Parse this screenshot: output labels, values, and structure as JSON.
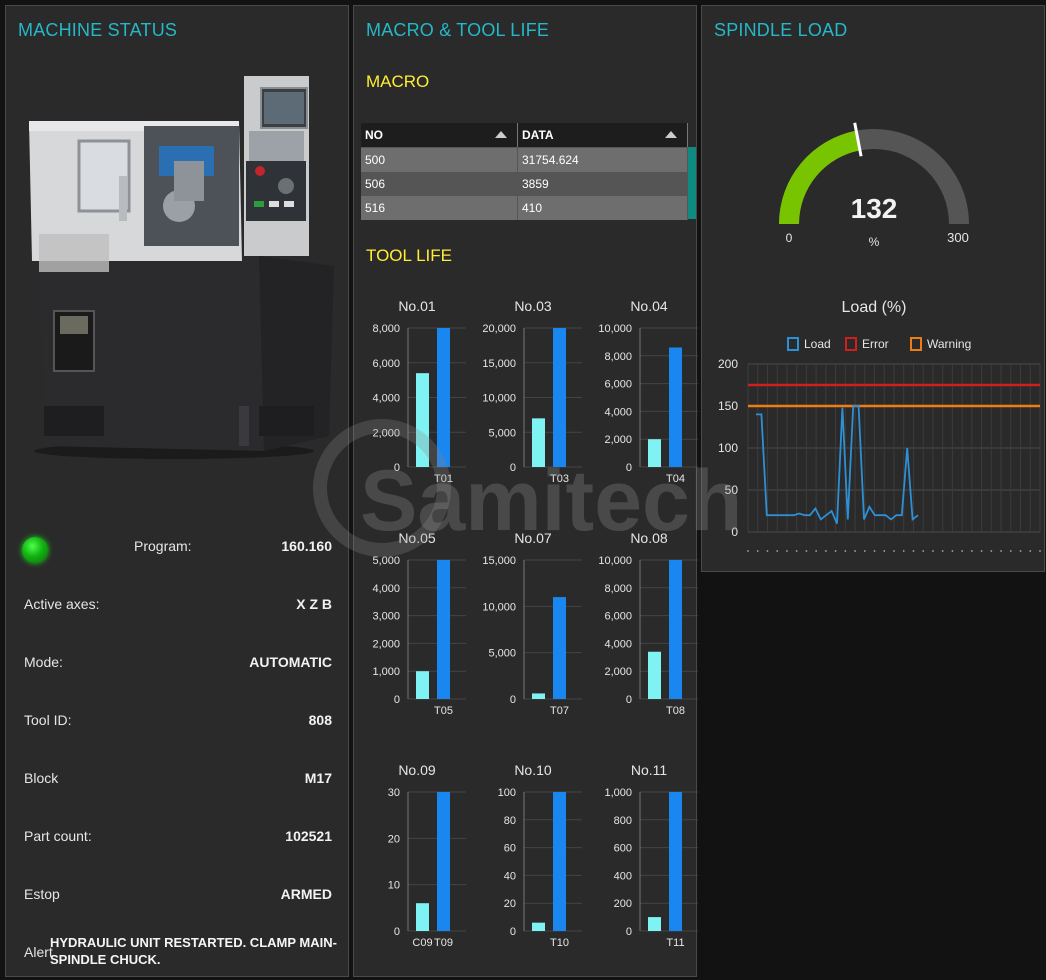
{
  "machine_status": {
    "title": "MACHINE STATUS",
    "rows": [
      {
        "label": "Program:",
        "value": "160.160"
      },
      {
        "label": "Active axes:",
        "value": "X Z B"
      },
      {
        "label": "Mode:",
        "value": "AUTOMATIC"
      },
      {
        "label": "Tool ID:",
        "value": "808"
      },
      {
        "label": "Block",
        "value": "M17"
      },
      {
        "label": "Part count:",
        "value": "102521"
      },
      {
        "label": "Estop",
        "value": "ARMED"
      }
    ],
    "alert_label": "Alert",
    "alert_text": "HYDRAULIC UNIT RESTARTED. CLAMP MAIN-SPINDLE CHUCK.",
    "status_color": "#1bd41b"
  },
  "macro_tool": {
    "title": "MACRO & TOOL LIFE",
    "macro_title": "MACRO",
    "columns": [
      "NO",
      "DATA"
    ],
    "rows": [
      [
        "500",
        "31754.624"
      ],
      [
        "506",
        "3859"
      ],
      [
        "516",
        "410"
      ]
    ],
    "tool_life_title": "TOOL LIFE"
  },
  "spindle": {
    "title": "SPINDLE LOAD",
    "gauge_value": "132",
    "gauge_unit": "%",
    "gauge_min": "0",
    "gauge_max": "300",
    "gauge_fill_color": "#79c400",
    "chart_title": "Load (%)",
    "legend": [
      {
        "name": "Load",
        "color": "#2d8fd6"
      },
      {
        "name": "Error",
        "color": "#d11f1f"
      },
      {
        "name": "Warning",
        "color": "#ef7d16"
      }
    ]
  },
  "watermark_text": "Samitech",
  "chart_data": [
    {
      "type": "bar",
      "title": "No.01",
      "categories": [
        "",
        "T01"
      ],
      "values": [
        5400,
        8000
      ],
      "yticks": [
        "0",
        "2,000",
        "4,000",
        "6,000",
        "8,000"
      ],
      "ylim": [
        0,
        8000
      ]
    },
    {
      "type": "bar",
      "title": "No.03",
      "categories": [
        "",
        "T03"
      ],
      "values": [
        7000,
        20000
      ],
      "yticks": [
        "0",
        "5,000",
        "10,000",
        "15,000",
        "20,000"
      ],
      "ylim": [
        0,
        20000
      ]
    },
    {
      "type": "bar",
      "title": "No.04",
      "categories": [
        "",
        "T04"
      ],
      "values": [
        2000,
        8600
      ],
      "yticks": [
        "0",
        "2,000",
        "4,000",
        "6,000",
        "8,000",
        "10,000"
      ],
      "ylim": [
        0,
        10000
      ]
    },
    {
      "type": "bar",
      "title": "No.05",
      "categories": [
        "",
        "T05"
      ],
      "values": [
        1000,
        5000
      ],
      "yticks": [
        "0",
        "1,000",
        "2,000",
        "3,000",
        "4,000",
        "5,000"
      ],
      "ylim": [
        0,
        5000
      ]
    },
    {
      "type": "bar",
      "title": "No.07",
      "categories": [
        "",
        "T07"
      ],
      "values": [
        600,
        11000
      ],
      "yticks": [
        "0",
        "5,000",
        "10,000",
        "15,000"
      ],
      "ylim": [
        0,
        15000
      ]
    },
    {
      "type": "bar",
      "title": "No.08",
      "categories": [
        "",
        "T08"
      ],
      "values": [
        3400,
        10000
      ],
      "yticks": [
        "0",
        "2,000",
        "4,000",
        "6,000",
        "8,000",
        "10,000"
      ],
      "ylim": [
        0,
        10000
      ]
    },
    {
      "type": "bar",
      "title": "No.09",
      "categories": [
        "C09",
        "T09"
      ],
      "values": [
        6,
        30
      ],
      "yticks": [
        "0",
        "10",
        "20",
        "30"
      ],
      "ylim": [
        0,
        30
      ]
    },
    {
      "type": "bar",
      "title": "No.10",
      "categories": [
        "",
        "T10"
      ],
      "values": [
        6,
        100
      ],
      "yticks": [
        "0",
        "20",
        "40",
        "60",
        "80",
        "100"
      ],
      "ylim": [
        0,
        100
      ]
    },
    {
      "type": "bar",
      "title": "No.11",
      "categories": [
        "",
        "T11"
      ],
      "values": [
        100,
        1000
      ],
      "yticks": [
        "0",
        "200",
        "400",
        "600",
        "800",
        "1,000"
      ],
      "ylim": [
        0,
        1000
      ]
    },
    {
      "type": "line",
      "title": "Load (%)",
      "ylim": [
        0,
        200
      ],
      "yticks": [
        "0",
        "50",
        "100",
        "150",
        "200"
      ],
      "series": [
        {
          "name": "Load",
          "values": [
            140,
            140,
            20,
            20,
            20,
            20,
            20,
            20,
            22,
            20,
            20,
            28,
            15,
            20,
            25,
            10,
            148,
            15,
            150,
            150,
            15,
            30,
            20,
            20,
            20,
            15,
            20,
            20,
            100,
            15,
            20
          ]
        },
        {
          "name": "Error",
          "values": [
            175
          ]
        },
        {
          "name": "Warning",
          "values": [
            150
          ]
        }
      ]
    }
  ]
}
